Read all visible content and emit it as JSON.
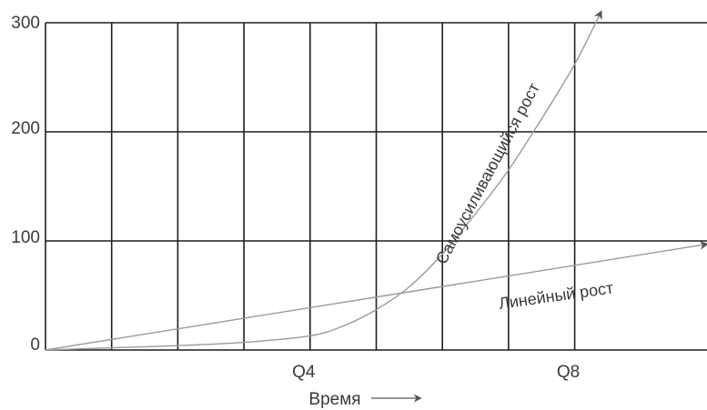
{
  "chart_data": {
    "type": "line",
    "title": "",
    "xlabel": "Время",
    "ylabel": "",
    "ylim": [
      0,
      300
    ],
    "xlim": [
      0,
      10
    ],
    "yticks": [
      0,
      100,
      200,
      300
    ],
    "xtick_labels": [
      {
        "x": 4,
        "label": "Q4"
      },
      {
        "x": 8,
        "label": "Q8"
      }
    ],
    "grid": true,
    "x_gridlines": [
      1,
      2,
      3,
      4,
      5,
      6,
      7,
      8
    ],
    "series": [
      {
        "name": "Линейный рост",
        "color": "#9a9a9a",
        "x": [
          0,
          10
        ],
        "y": [
          0,
          97
        ]
      },
      {
        "name": "Самоусиливающийся рост",
        "color": "#9a9a9a",
        "x": [
          0,
          1,
          2,
          3,
          4,
          4.5,
          5,
          5.5,
          6,
          6.5,
          7,
          7.5,
          8,
          8.4
        ],
        "y": [
          0,
          2,
          4,
          7,
          13,
          22,
          37,
          58,
          88,
          125,
          165,
          212,
          262,
          310
        ]
      }
    ]
  }
}
